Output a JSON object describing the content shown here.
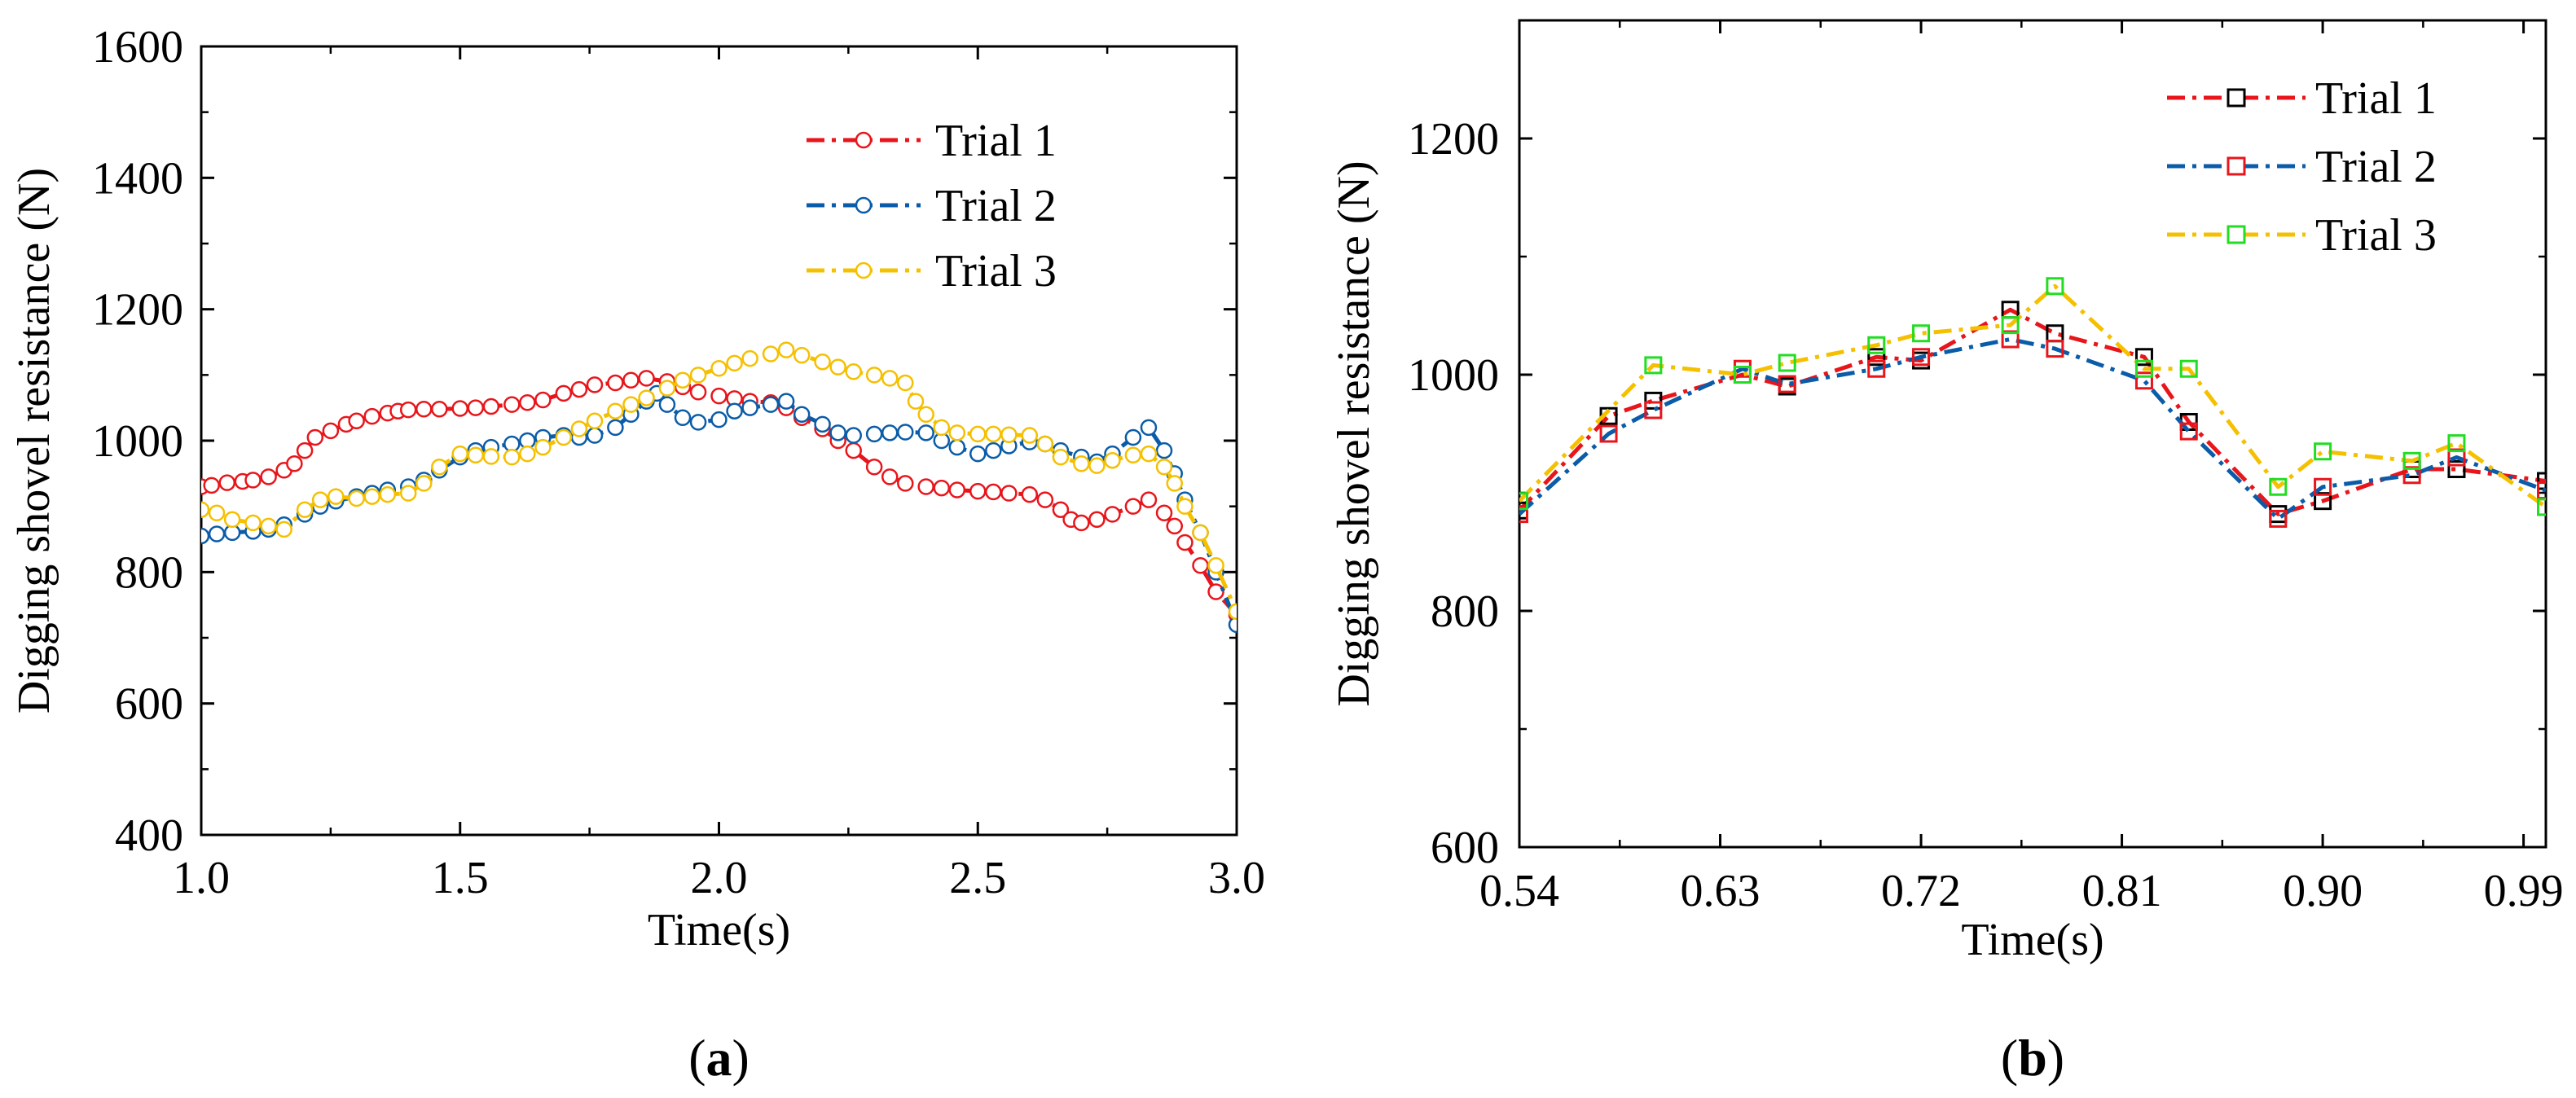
{
  "chart_data": [
    {
      "type": "line",
      "panel_label": {
        "open": "(",
        "letter": "a",
        "close": ")"
      },
      "xlabel": "Time(s)",
      "ylabel": "Digging shovel resistance (N)",
      "xlim": [
        1.0,
        3.0
      ],
      "ylim": [
        400,
        1600
      ],
      "xticks": [
        "1.0",
        "1.5",
        "2.0",
        "2.5",
        "3.0"
      ],
      "yticks": [
        "400",
        "600",
        "800",
        "1000",
        "1200",
        "1400",
        "1600"
      ],
      "marker": "circle",
      "legend_position": "top-right",
      "series": [
        {
          "name": "Trial 1",
          "color": "#e8151b",
          "dash": "dashdot",
          "x": [
            1.0,
            1.02,
            1.05,
            1.08,
            1.1,
            1.13,
            1.16,
            1.18,
            1.2,
            1.22,
            1.25,
            1.28,
            1.3,
            1.33,
            1.36,
            1.38,
            1.4,
            1.43,
            1.46,
            1.5,
            1.53,
            1.56,
            1.6,
            1.63,
            1.66,
            1.7,
            1.73,
            1.76,
            1.8,
            1.83,
            1.86,
            1.9,
            1.93,
            1.96,
            2.0,
            2.03,
            2.06,
            2.1,
            2.13,
            2.16,
            2.2,
            2.23,
            2.26,
            2.3,
            2.33,
            2.36,
            2.4,
            2.43,
            2.46,
            2.5,
            2.53,
            2.56,
            2.6,
            2.63,
            2.66,
            2.68,
            2.7,
            2.73,
            2.76,
            2.8,
            2.83,
            2.86,
            2.88,
            2.9,
            2.93,
            2.96,
            3.0
          ],
          "y": [
            930,
            932,
            936,
            938,
            940,
            945,
            955,
            965,
            985,
            1005,
            1015,
            1025,
            1030,
            1037,
            1042,
            1045,
            1047,
            1048,
            1048,
            1049,
            1050,
            1052,
            1055,
            1058,
            1062,
            1072,
            1078,
            1085,
            1088,
            1092,
            1095,
            1090,
            1082,
            1074,
            1068,
            1064,
            1060,
            1058,
            1050,
            1035,
            1018,
            1000,
            985,
            960,
            945,
            935,
            930,
            928,
            925,
            923,
            922,
            920,
            918,
            910,
            895,
            880,
            875,
            880,
            888,
            900,
            910,
            890,
            870,
            845,
            810,
            770,
            735
          ]
        },
        {
          "name": "Trial 2",
          "color": "#0a5ca8",
          "dash": "dashdot",
          "x": [
            1.0,
            1.03,
            1.06,
            1.1,
            1.13,
            1.16,
            1.2,
            1.23,
            1.26,
            1.3,
            1.33,
            1.36,
            1.4,
            1.43,
            1.46,
            1.5,
            1.53,
            1.56,
            1.6,
            1.63,
            1.66,
            1.7,
            1.73,
            1.76,
            1.8,
            1.83,
            1.86,
            1.88,
            1.9,
            1.93,
            1.96,
            2.0,
            2.03,
            2.06,
            2.1,
            2.13,
            2.16,
            2.2,
            2.23,
            2.26,
            2.3,
            2.33,
            2.36,
            2.4,
            2.43,
            2.46,
            2.5,
            2.53,
            2.56,
            2.6,
            2.63,
            2.66,
            2.7,
            2.73,
            2.76,
            2.8,
            2.83,
            2.86,
            2.88,
            2.9,
            2.93,
            2.96,
            3.0
          ],
          "y": [
            855,
            858,
            860,
            862,
            865,
            872,
            888,
            900,
            908,
            915,
            920,
            925,
            930,
            940,
            955,
            975,
            985,
            990,
            995,
            1000,
            1005,
            1008,
            1005,
            1008,
            1020,
            1040,
            1060,
            1072,
            1055,
            1035,
            1028,
            1032,
            1045,
            1050,
            1055,
            1060,
            1040,
            1025,
            1012,
            1008,
            1010,
            1012,
            1013,
            1012,
            1000,
            990,
            980,
            985,
            992,
            998,
            995,
            985,
            975,
            968,
            980,
            1005,
            1020,
            985,
            950,
            910,
            860,
            800,
            720
          ]
        },
        {
          "name": "Trial 3",
          "color": "#f5c000",
          "dash": "dashdot",
          "x": [
            1.0,
            1.03,
            1.06,
            1.1,
            1.13,
            1.16,
            1.2,
            1.23,
            1.26,
            1.3,
            1.33,
            1.36,
            1.4,
            1.43,
            1.46,
            1.5,
            1.53,
            1.56,
            1.6,
            1.63,
            1.66,
            1.7,
            1.73,
            1.76,
            1.8,
            1.83,
            1.86,
            1.9,
            1.93,
            1.96,
            2.0,
            2.03,
            2.06,
            2.1,
            2.13,
            2.16,
            2.2,
            2.23,
            2.26,
            2.3,
            2.33,
            2.36,
            2.38,
            2.4,
            2.43,
            2.46,
            2.5,
            2.53,
            2.56,
            2.6,
            2.63,
            2.66,
            2.7,
            2.73,
            2.76,
            2.8,
            2.83,
            2.86,
            2.88,
            2.9,
            2.93,
            2.96,
            3.0
          ],
          "y": [
            895,
            890,
            880,
            875,
            870,
            865,
            895,
            910,
            915,
            912,
            915,
            918,
            920,
            935,
            960,
            980,
            978,
            976,
            975,
            980,
            990,
            1005,
            1018,
            1030,
            1045,
            1055,
            1065,
            1080,
            1092,
            1100,
            1110,
            1118,
            1125,
            1132,
            1138,
            1130,
            1120,
            1112,
            1105,
            1100,
            1095,
            1088,
            1060,
            1040,
            1020,
            1012,
            1010,
            1010,
            1009,
            1008,
            995,
            975,
            965,
            962,
            970,
            978,
            980,
            960,
            935,
            900,
            860,
            810,
            740
          ]
        }
      ]
    },
    {
      "type": "line",
      "panel_label": {
        "open": "(",
        "letter": "b",
        "close": ")"
      },
      "xlabel": "Time(s)",
      "ylabel": "Digging shovel resistance (N)",
      "xlim": [
        0.54,
        1.0
      ],
      "ylim": [
        600,
        1300
      ],
      "xticks": [
        "0.54",
        "0.63",
        "0.72",
        "0.81",
        "0.90",
        "0.99"
      ],
      "yticks": [
        "600",
        "800",
        "1000",
        "1200"
      ],
      "marker": "square",
      "legend_position": "top-right",
      "series": [
        {
          "name": "Trial 1",
          "color": "#e8151b",
          "marker_color": "#000000",
          "dash": "dashdot",
          "x": [
            0.54,
            0.58,
            0.6,
            0.64,
            0.66,
            0.7,
            0.72,
            0.76,
            0.78,
            0.82,
            0.84,
            0.88,
            0.9,
            0.94,
            0.96,
            1.0
          ],
          "y": [
            885,
            965,
            978,
            1000,
            990,
            1015,
            1012,
            1055,
            1035,
            1015,
            960,
            882,
            893,
            920,
            920,
            910
          ]
        },
        {
          "name": "Trial 2",
          "color": "#0a5ca8",
          "marker_color": "#e8151b",
          "dash": "dashdot",
          "x": [
            0.54,
            0.58,
            0.6,
            0.64,
            0.66,
            0.7,
            0.72,
            0.76,
            0.78,
            0.82,
            0.84,
            0.88,
            0.9,
            0.94,
            0.96,
            1.0
          ],
          "y": [
            882,
            950,
            970,
            1005,
            992,
            1005,
            1015,
            1030,
            1022,
            995,
            952,
            878,
            905,
            915,
            930,
            902
          ]
        },
        {
          "name": "Trial 3",
          "color": "#f5c000",
          "marker_color": "#22dd22",
          "dash": "dashdot",
          "x": [
            0.54,
            0.6,
            0.64,
            0.66,
            0.7,
            0.72,
            0.76,
            0.78,
            0.82,
            0.84,
            0.88,
            0.9,
            0.94,
            0.96,
            1.0
          ],
          "y": [
            893,
            1008,
            1000,
            1010,
            1025,
            1035,
            1042,
            1075,
            1005,
            1005,
            905,
            935,
            927,
            942,
            888
          ]
        }
      ]
    }
  ]
}
